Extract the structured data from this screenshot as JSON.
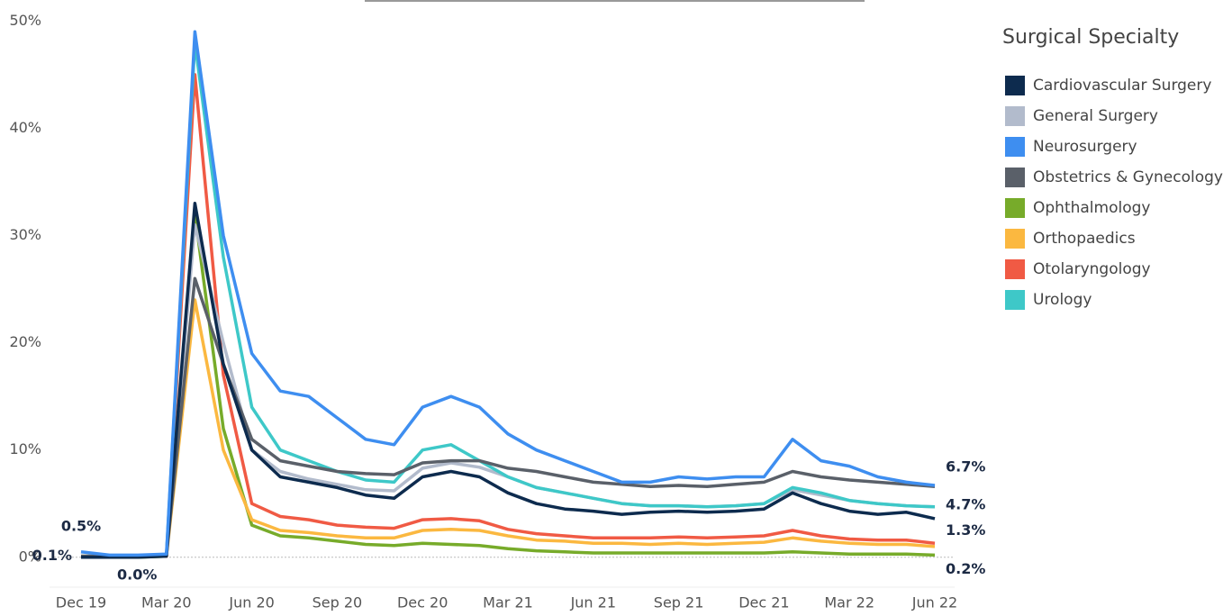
{
  "chart_data": {
    "type": "line",
    "legend_title": "Surgical Specialty",
    "legend": "right",
    "categories": [
      "Dec 19",
      null,
      null,
      "Mar 20",
      null,
      null,
      "Jun 20",
      null,
      null,
      "Sep 20",
      null,
      null,
      "Dec 20",
      null,
      null,
      "Mar 21",
      null,
      null,
      "Jun 21",
      null,
      null,
      "Sep 21",
      null,
      null,
      "Dec 21",
      null,
      null,
      "Mar 22",
      null,
      null,
      "Jun 22"
    ],
    "ylim": [
      -3,
      51
    ],
    "yticks": [
      {
        "value": 0,
        "label": "0%"
      },
      {
        "value": 10,
        "label": "10%"
      },
      {
        "value": 20,
        "label": "20%"
      },
      {
        "value": 30,
        "label": "30%"
      },
      {
        "value": 40,
        "label": "40%"
      },
      {
        "value": 50,
        "label": "50%"
      }
    ],
    "series": [
      {
        "name": "Cardiovascular Surgery",
        "color": "#0d2b4e",
        "values": [
          0,
          0,
          0,
          0.1,
          33,
          18,
          10,
          7.5,
          7,
          6.5,
          5.8,
          5.5,
          7.5,
          8,
          7.5,
          6,
          5,
          4.5,
          4.3,
          4,
          4.2,
          4.3,
          4.2,
          4.3,
          4.5,
          6,
          5,
          4.3,
          4,
          4.2,
          3.6
        ],
        "value_labels": [
          "0.0%",
          null,
          null,
          null,
          null,
          null,
          null,
          null,
          null,
          null,
          null,
          null,
          null,
          null,
          null,
          null,
          null,
          null,
          null,
          null,
          null,
          null,
          null,
          null,
          null,
          null,
          null,
          null,
          null,
          null,
          null
        ]
      },
      {
        "name": "General Surgery",
        "color": "#b2bbcc",
        "values": [
          0.1,
          0.1,
          0.1,
          0.2,
          31,
          20,
          10,
          8,
          7.3,
          6.8,
          6.3,
          6.2,
          8.3,
          8.8,
          8.4,
          7.5,
          6.5,
          6,
          5.5,
          5,
          4.8,
          4.8,
          4.7,
          4.8,
          5,
          6.3,
          5.8,
          5.3,
          5,
          4.8,
          4.7
        ],
        "value_labels": [
          null,
          null,
          null,
          null,
          null,
          null,
          null,
          null,
          null,
          null,
          null,
          null,
          null,
          null,
          null,
          null,
          null,
          null,
          null,
          null,
          null,
          null,
          null,
          null,
          null,
          null,
          null,
          null,
          null,
          null,
          "4.7%"
        ]
      },
      {
        "name": "Neurosurgery",
        "color": "#3e8ef0",
        "values": [
          0.5,
          0.2,
          0.2,
          0.3,
          49,
          30,
          19,
          15.5,
          15,
          13,
          11,
          10.5,
          14,
          15,
          14,
          11.5,
          10,
          9,
          8,
          7,
          7,
          7.5,
          7.3,
          7.5,
          7.5,
          11,
          9,
          8.5,
          7.5,
          7,
          6.7
        ],
        "value_labels": [
          "0.5%",
          null,
          null,
          null,
          null,
          null,
          null,
          null,
          null,
          null,
          null,
          null,
          null,
          null,
          null,
          null,
          null,
          null,
          null,
          null,
          null,
          null,
          null,
          null,
          null,
          null,
          null,
          null,
          null,
          null,
          "6.7%"
        ]
      },
      {
        "name": "Obstetrics & Gynecology",
        "color": "#5a6069",
        "values": [
          0.1,
          0.1,
          0.1,
          0.2,
          26,
          18,
          11,
          9,
          8.5,
          8,
          7.8,
          7.7,
          8.8,
          9,
          9,
          8.3,
          8,
          7.5,
          7,
          6.8,
          6.6,
          6.7,
          6.6,
          6.8,
          7,
          8,
          7.5,
          7.2,
          7,
          6.8,
          6.6
        ],
        "value_labels": [
          "0.1%",
          null,
          null,
          null,
          null,
          null,
          null,
          null,
          null,
          null,
          null,
          null,
          null,
          null,
          null,
          null,
          null,
          null,
          null,
          null,
          null,
          null,
          null,
          null,
          null,
          null,
          null,
          null,
          null,
          null,
          null
        ]
      },
      {
        "name": "Ophthalmology",
        "color": "#77ab2a",
        "values": [
          0,
          0,
          0,
          0.1,
          32,
          12,
          3,
          2,
          1.8,
          1.5,
          1.2,
          1.1,
          1.3,
          1.2,
          1.1,
          0.8,
          0.6,
          0.5,
          0.4,
          0.4,
          0.4,
          0.4,
          0.4,
          0.4,
          0.4,
          0.5,
          0.4,
          0.3,
          0.3,
          0.3,
          0.2
        ],
        "value_labels": [
          null,
          null,
          null,
          null,
          null,
          null,
          null,
          null,
          null,
          null,
          null,
          null,
          null,
          null,
          null,
          null,
          null,
          null,
          null,
          null,
          null,
          null,
          null,
          null,
          null,
          null,
          null,
          null,
          null,
          null,
          "0.2%"
        ]
      },
      {
        "name": "Orthopaedics",
        "color": "#fbb840",
        "values": [
          0.1,
          0.1,
          0.1,
          0.1,
          24,
          10,
          3.5,
          2.5,
          2.3,
          2,
          1.8,
          1.8,
          2.5,
          2.6,
          2.5,
          2,
          1.6,
          1.5,
          1.3,
          1.3,
          1.2,
          1.3,
          1.2,
          1.3,
          1.4,
          1.8,
          1.5,
          1.3,
          1.2,
          1.2,
          1
        ]
      },
      {
        "name": "Otolaryngology",
        "color": "#f05a44",
        "values": [
          0.1,
          0.1,
          0.1,
          0.1,
          45,
          17,
          5,
          3.8,
          3.5,
          3,
          2.8,
          2.7,
          3.5,
          3.6,
          3.4,
          2.6,
          2.2,
          2,
          1.8,
          1.8,
          1.8,
          1.9,
          1.8,
          1.9,
          2,
          2.5,
          2,
          1.7,
          1.6,
          1.6,
          1.3
        ],
        "value_labels": [
          null,
          null,
          null,
          null,
          null,
          null,
          null,
          null,
          null,
          null,
          null,
          null,
          null,
          null,
          null,
          null,
          null,
          null,
          null,
          null,
          null,
          null,
          null,
          null,
          null,
          null,
          null,
          null,
          null,
          null,
          "1.3%"
        ]
      },
      {
        "name": "Urology",
        "color": "#3ec8c8",
        "values": [
          0.1,
          0.1,
          0.1,
          0.2,
          48,
          28,
          14,
          10,
          9,
          8,
          7.2,
          7,
          10,
          10.5,
          9,
          7.5,
          6.5,
          6,
          5.5,
          5,
          4.8,
          4.8,
          4.7,
          4.8,
          5,
          6.5,
          6,
          5.3,
          5,
          4.8,
          4.7
        ]
      }
    ]
  }
}
